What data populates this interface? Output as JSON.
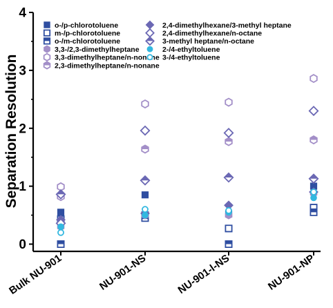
{
  "chart_data": {
    "type": "scatter",
    "ylabel": "Separation Resolution",
    "xlabel": "",
    "ylim": [
      0,
      4
    ],
    "yticks": [
      0,
      1,
      2,
      3,
      4
    ],
    "categories": [
      "Bulk NU-901",
      "NU-901-NS",
      "NU-901-l-NS",
      "NU-901-NP"
    ],
    "grid": false,
    "legend_position": "top-left",
    "colors": {
      "blue": "#2f4ea1",
      "purple": "#6b68b4",
      "lavender": "#a38fc8",
      "cyan": "#33b8e0"
    },
    "series": [
      {
        "name": "o-/p-chlorotoluene",
        "marker": "square-filled",
        "color": "#2f4ea1",
        "values": [
          0.55,
          0.85,
          0.52,
          1.0
        ]
      },
      {
        "name": "m-/p-chlorotoluene",
        "marker": "square-open",
        "color": "#2f4ea1",
        "values": [
          0.43,
          0.45,
          0.27,
          0.63
        ]
      },
      {
        "name": "o-/m-chlorotoluene",
        "marker": "square-half",
        "color": "#2f4ea1",
        "values": [
          0.0,
          0.5,
          0.0,
          0.55
        ]
      },
      {
        "name": "3,3-/2,3-dimethylheptane",
        "marker": "hexagon-filled",
        "color": "#a38fc8",
        "values": [
          0.3,
          0.5,
          0.5,
          0.88
        ]
      },
      {
        "name": "3,3-dimethylheptane/n-nonane",
        "marker": "hexagon-open",
        "color": "#a38fc8",
        "values": [
          0.99,
          2.42,
          2.45,
          2.86
        ]
      },
      {
        "name": "2,3-dimethylheptane/n-nonane",
        "marker": "hexagon-half",
        "color": "#a38fc8",
        "values": [
          0.82,
          1.64,
          1.77,
          1.8
        ]
      },
      {
        "name": "2,4-dimethylhexane/3-methyl heptane",
        "marker": "diamond-filled",
        "color": "#6b68b4",
        "values": [
          0.42,
          0.53,
          0.67,
          0.9
        ]
      },
      {
        "name": "2,4-dimethylhexane/n-octane",
        "marker": "diamond-open",
        "color": "#6b68b4",
        "values": [
          0.36,
          1.96,
          1.92,
          2.3
        ]
      },
      {
        "name": "3-methyl heptane/n-octane",
        "marker": "diamond-half",
        "color": "#6b68b4",
        "values": [
          0.86,
          1.1,
          1.15,
          1.13
        ]
      },
      {
        "name": "2-/4-ethyltoluene",
        "marker": "circle-filled",
        "color": "#33b8e0",
        "values": [
          0.3,
          0.5,
          0.55,
          0.8
        ]
      },
      {
        "name": "3-/4-ethyltoluene",
        "marker": "circle-open",
        "color": "#33b8e0",
        "values": [
          0.2,
          0.6,
          0.58,
          0.9
        ]
      }
    ],
    "legend": {
      "col1": [
        "o-/p-chlorotoluene",
        "m-/p-chlorotoluene",
        "o-/m-chlorotoluene",
        "3,3-/2,3-dimethylheptane",
        "3,3-dimethylheptane/n-nonane",
        "2,3-dimethylheptane/n-nonane"
      ],
      "col2": [
        "2,4-dimethylhexane/3-methyl heptane",
        "2,4-dimethylhexane/n-octane",
        "3-methyl heptane/n-octane",
        "2-/4-ethyltoluene",
        "3-/4-ethyltoluene"
      ]
    }
  }
}
